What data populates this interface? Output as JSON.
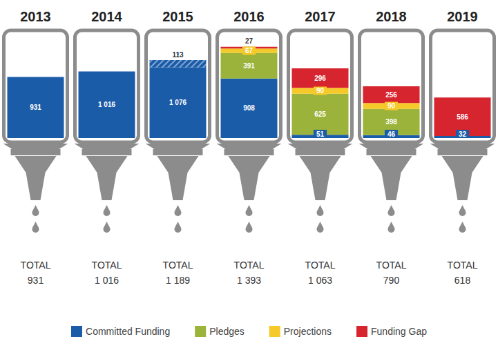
{
  "chart_data": {
    "type": "bar",
    "stacked": true,
    "data_labels": true,
    "tick_labels": "x",
    "legend": "bottom",
    "categories": [
      "2013",
      "2014",
      "2015",
      "2016",
      "2017",
      "2018",
      "2019"
    ],
    "ylim": [
      0,
      1600
    ],
    "series": [
      {
        "name": "Committed Funding",
        "color": "#1b5ca9",
        "values": [
          931,
          1016,
          1076,
          908,
          51,
          46,
          32
        ],
        "value_labels": [
          "931",
          "1 016",
          "1 076",
          "908",
          "51",
          "46",
          "32"
        ]
      },
      {
        "name": "Pledges",
        "color": "#9bb33a",
        "values": [
          null,
          null,
          null,
          391,
          625,
          398,
          null
        ]
      },
      {
        "name": "Projections",
        "color": "#f5c928",
        "values": [
          null,
          null,
          null,
          67,
          90,
          90,
          null
        ]
      },
      {
        "name": "Funding Gap",
        "color": "#d7252f",
        "values": [
          null,
          null,
          null,
          27,
          296,
          256,
          586
        ]
      }
    ],
    "marked_segment": {
      "label": "*",
      "color": "#1b5ca9",
      "values": [
        null,
        null,
        113,
        null,
        null,
        null,
        null
      ]
    },
    "totals": {
      "title": "TOTAL",
      "values": [
        931,
        1016,
        1189,
        1393,
        1063,
        790,
        618
      ],
      "value_labels": [
        "931",
        "1 016",
        "1 189",
        "1 393",
        "1 063",
        "790",
        "618"
      ]
    }
  }
}
